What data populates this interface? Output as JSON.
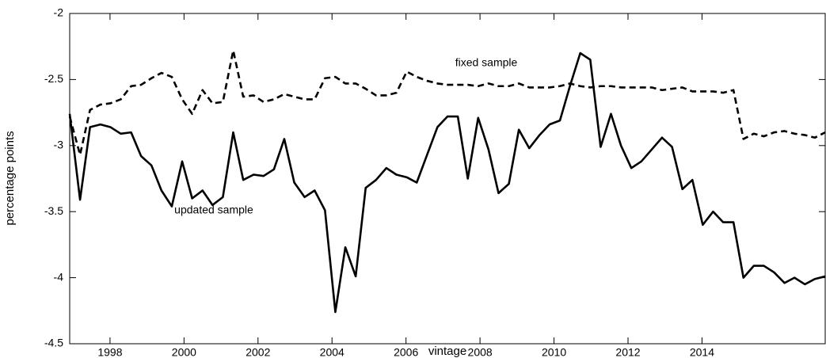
{
  "chart_data": {
    "type": "line",
    "x_label": "vintage",
    "y_label": "percentage points",
    "x": [
      1996.91,
      1997.19,
      1997.46,
      1997.74,
      1998.01,
      1998.29,
      1998.57,
      1998.84,
      1999.12,
      1999.39,
      1999.67,
      1999.95,
      2000.22,
      2000.5,
      2000.77,
      2001.05,
      2001.33,
      2001.6,
      2001.88,
      2002.15,
      2002.43,
      2002.71,
      2002.98,
      2003.26,
      2003.53,
      2003.81,
      2004.09,
      2004.36,
      2004.64,
      2004.91,
      2005.19,
      2005.47,
      2005.74,
      2006.02,
      2006.29,
      2006.57,
      2006.85,
      2007.12,
      2007.4,
      2007.67,
      2007.95,
      2008.23,
      2008.5,
      2008.78,
      2009.05,
      2009.33,
      2009.61,
      2009.88,
      2010.16,
      2010.43,
      2010.71,
      2010.98,
      2011.26,
      2011.54,
      2011.81,
      2012.09,
      2012.36,
      2012.64,
      2012.92,
      2013.19,
      2013.47,
      2013.74,
      2014.02,
      2014.3,
      2014.57,
      2014.85,
      2015.12,
      2015.4,
      2015.67,
      2015.95,
      2016.23,
      2016.5,
      2016.78,
      2017.05,
      2017.33
    ],
    "series": [
      {
        "name": "fixed sample",
        "color": "#000000",
        "dashed": true,
        "values": [
          -2.78,
          -3.07,
          -2.73,
          -2.69,
          -2.68,
          -2.65,
          -2.55,
          -2.54,
          -2.49,
          -2.45,
          -2.48,
          -2.65,
          -2.76,
          -2.58,
          -2.68,
          -2.67,
          -2.28,
          -2.63,
          -2.62,
          -2.67,
          -2.65,
          -2.61,
          -2.63,
          -2.65,
          -2.65,
          -2.49,
          -2.48,
          -2.53,
          -2.53,
          -2.57,
          -2.62,
          -2.62,
          -2.6,
          -2.44,
          -2.48,
          -2.51,
          -2.53,
          -2.54,
          -2.54,
          -2.54,
          -2.55,
          -2.53,
          -2.55,
          -2.55,
          -2.53,
          -2.56,
          -2.56,
          -2.56,
          -2.55,
          -2.53,
          -2.55,
          -2.56,
          -2.55,
          -2.55,
          -2.56,
          -2.56,
          -2.56,
          -2.56,
          -2.58,
          -2.57,
          -2.56,
          -2.59,
          -2.59,
          -2.59,
          -2.6,
          -2.58,
          -2.95,
          -2.91,
          -2.93,
          -2.9,
          -2.89,
          -2.91,
          -2.92,
          -2.94,
          -2.9
        ]
      },
      {
        "name": "updated sample",
        "color": "#000000",
        "dashed": false,
        "values": [
          -2.76,
          -3.41,
          -2.86,
          -2.84,
          -2.86,
          -2.91,
          -2.9,
          -3.08,
          -3.15,
          -3.34,
          -3.46,
          -3.12,
          -3.4,
          -3.34,
          -3.45,
          -3.39,
          -2.9,
          -3.26,
          -3.22,
          -3.23,
          -3.18,
          -2.95,
          -3.28,
          -3.39,
          -3.34,
          -3.49,
          -4.26,
          -3.77,
          -3.99,
          -3.32,
          -3.26,
          -3.17,
          -3.22,
          -3.24,
          -3.28,
          -3.07,
          -2.86,
          -2.78,
          -2.78,
          -3.25,
          -2.79,
          -3.03,
          -3.36,
          -3.29,
          -2.88,
          -3.02,
          -2.92,
          -2.84,
          -2.81,
          -2.55,
          -2.3,
          -2.35,
          -3.01,
          -2.76,
          -3.0,
          -3.17,
          -3.12,
          -3.03,
          -2.94,
          -3.01,
          -3.33,
          -3.26,
          -3.6,
          -3.5,
          -3.58,
          -3.58,
          -4.0,
          -3.91,
          -3.91,
          -3.96,
          -4.04,
          -4.0,
          -4.05,
          -4.01,
          -3.99
        ]
      }
    ],
    "xlim": [
      1996.91,
      2017.33
    ],
    "xticks": [
      1998,
      2000,
      2002,
      2004,
      2006,
      2008,
      2010,
      2012,
      2014
    ],
    "ylim": [
      -4.5,
      -2
    ],
    "yticks": [
      -4.5,
      -4,
      -3.5,
      -3,
      -2.5,
      -2
    ],
    "grid": false
  }
}
